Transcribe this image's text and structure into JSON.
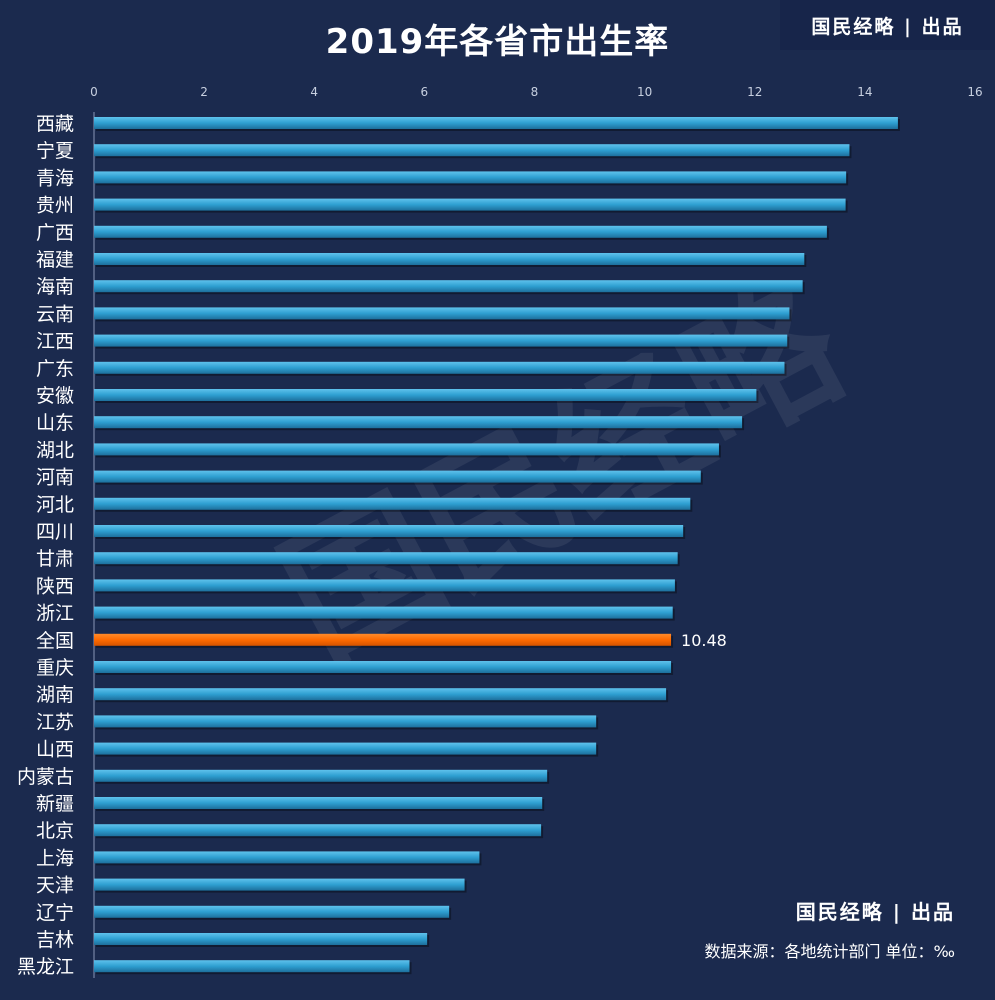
{
  "header": {
    "title": "2019年各省市出生率",
    "brand": "国民经略 | 出品"
  },
  "footer": {
    "brand": "国民经略 | 出品",
    "source": "数据来源：各地统计部门  单位：‰"
  },
  "colors": {
    "background": "#1b2a4e",
    "bar": "#2e9fd1",
    "highlight_bar": "#ff6a00",
    "text": "#ffffff",
    "axis_text": "#c8d0e0"
  },
  "chart_data": {
    "type": "bar",
    "orientation": "horizontal",
    "title": "2019年各省市出生率",
    "xlim": [
      0,
      16
    ],
    "x_ticks": [
      0,
      2,
      4,
      6,
      8,
      10,
      12,
      14,
      16
    ],
    "x_axis_position": "top",
    "grid": false,
    "unit": "‰",
    "categories": [
      "西藏",
      "宁夏",
      "青海",
      "贵州",
      "广西",
      "福建",
      "海南",
      "云南",
      "江西",
      "广东",
      "安徽",
      "山东",
      "湖北",
      "河南",
      "河北",
      "四川",
      "甘肃",
      "陕西",
      "浙江",
      "全国",
      "重庆",
      "湖南",
      "江苏",
      "山西",
      "内蒙古",
      "新疆",
      "北京",
      "上海",
      "天津",
      "辽宁",
      "吉林",
      "黑龙江"
    ],
    "values": [
      14.6,
      13.72,
      13.66,
      13.65,
      13.31,
      12.9,
      12.87,
      12.63,
      12.59,
      12.54,
      12.03,
      11.77,
      11.35,
      11.02,
      10.83,
      10.7,
      10.6,
      10.55,
      10.51,
      10.48,
      10.48,
      10.39,
      9.12,
      9.12,
      8.23,
      8.14,
      8.12,
      7.0,
      6.73,
      6.45,
      6.05,
      5.73
    ],
    "highlight": {
      "category": "全国",
      "label": "10.48"
    }
  },
  "watermark": "国民经略"
}
